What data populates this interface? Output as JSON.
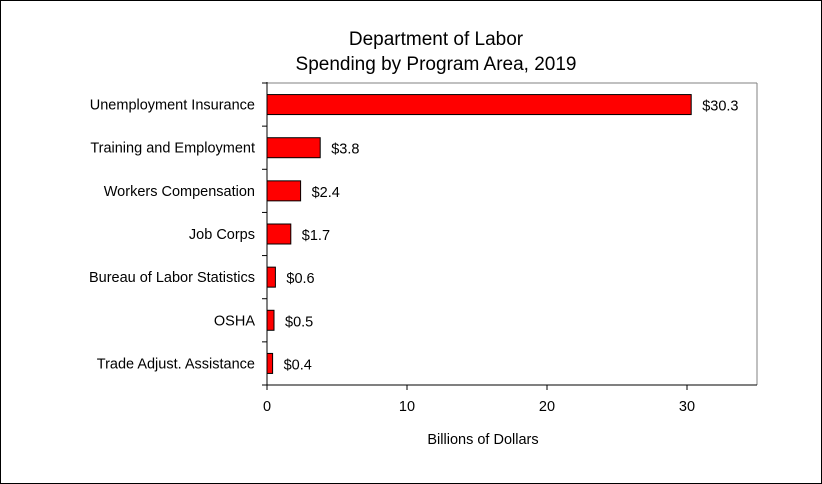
{
  "chart_data": {
    "type": "bar",
    "orientation": "horizontal",
    "title": "Department of Labor",
    "subtitle": "Spending by Program Area, 2019",
    "xlabel": "Billions of Dollars",
    "ylabel": "",
    "categories": [
      "Unemployment Insurance",
      "Training and Employment",
      "Workers Compensation",
      "Job Corps",
      "Bureau of Labor Statistics",
      "OSHA",
      "Trade Adjust. Assistance"
    ],
    "values": [
      30.3,
      3.8,
      2.4,
      1.7,
      0.6,
      0.5,
      0.4
    ],
    "data_labels": [
      "$30.3",
      "$3.8",
      "$2.4",
      "$1.7",
      "$0.6",
      "$0.5",
      "$0.4"
    ],
    "xlim": [
      0,
      35
    ],
    "xticks": [
      0,
      10,
      20,
      30
    ],
    "xtick_labels": [
      "0",
      "10",
      "20",
      "30"
    ],
    "grid": false,
    "legend": "none",
    "bar_color": "#ff0000",
    "bar_edge_color": "#000000",
    "plot_border_color": "#808080"
  }
}
